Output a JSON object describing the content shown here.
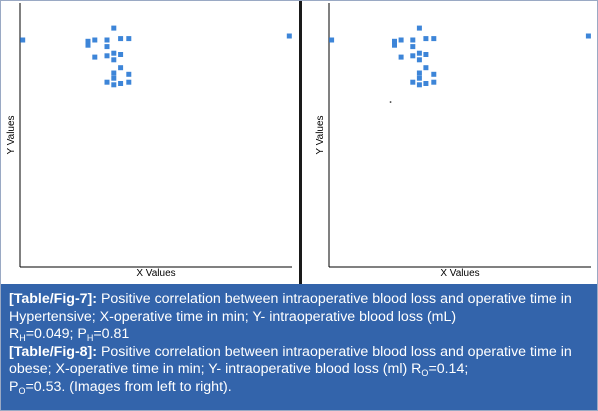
{
  "chart_data": [
    {
      "type": "scatter",
      "title": "",
      "xlabel": "X Values",
      "ylabel": "Y Values",
      "axes_ticks": "none",
      "grid": false,
      "legend": "none",
      "marker_color": "#3d85d8",
      "x": [
        1.0,
        25.0,
        25.0,
        27.5,
        27.5,
        32.0,
        32.0,
        32.0,
        32.0,
        34.5,
        34.5,
        34.5,
        34.5,
        34.5,
        34.5,
        37.0,
        37.0,
        37.0,
        37.0,
        40.0,
        40.0,
        40.0,
        99.0
      ],
      "y": [
        86.0,
        84.0,
        85.5,
        79.5,
        86.0,
        83.5,
        86.0,
        80.0,
        70.0,
        81.0,
        78.5,
        73.5,
        71.5,
        69.0,
        90.5,
        86.5,
        80.5,
        75.5,
        69.5,
        86.5,
        70.0,
        73.0,
        87.5
      ]
    },
    {
      "type": "scatter",
      "title": "",
      "xlabel": "X Values",
      "ylabel": "Y Values",
      "axes_ticks": "none",
      "grid": false,
      "legend": "none",
      "marker_color": "#3d85d8",
      "x": [
        1.0,
        25.0,
        25.0,
        27.5,
        27.5,
        32.0,
        32.0,
        32.0,
        32.0,
        34.5,
        34.5,
        34.5,
        34.5,
        34.5,
        34.5,
        37.0,
        37.0,
        37.0,
        37.0,
        40.0,
        40.0,
        40.0,
        99.0,
        23.5
      ],
      "y": [
        86.0,
        84.0,
        85.5,
        79.5,
        86.0,
        83.5,
        86.0,
        80.0,
        70.0,
        81.0,
        78.5,
        73.5,
        71.5,
        69.0,
        90.5,
        86.5,
        80.5,
        75.5,
        69.5,
        86.5,
        70.0,
        73.0,
        87.5,
        62.5
      ],
      "sizes": [
        1,
        1,
        1,
        1,
        1,
        1,
        1,
        1,
        1,
        1,
        1,
        1,
        1,
        1,
        1,
        1,
        1,
        1,
        1,
        1,
        1,
        1,
        1,
        0.3
      ]
    }
  ],
  "caption": {
    "fig7_ref": "[Table/Fig-7]:",
    "fig7_text": " Positive correlation between intraoperative blood loss and operative time in Hypertensive; X-operative time in min; Y- intraoperative blood loss (mL)",
    "fig7_r_prefix": "R",
    "fig7_r_sub": "H",
    "fig7_r_value": "=0.049; P",
    "fig7_p_sub": "H",
    "fig7_p_value": "=0.81",
    "fig8_ref": "[Table/Fig-8]:",
    "fig8_text": " Positive correlation between intraoperative blood loss and operative time in obese; X-operative time in min; Y- intraoperative blood loss (ml) R",
    "fig8_r_sub": "O",
    "fig8_r_value": "=0.14;",
    "fig8_p_prefix": "P",
    "fig8_p_sub": "O",
    "fig8_p_value": "=0.53. (Images from left to right)."
  },
  "colors": {
    "caption_background": "#3364ab",
    "caption_text": "#ffffff",
    "marker": "#3d85d8",
    "axis": "#000000"
  }
}
